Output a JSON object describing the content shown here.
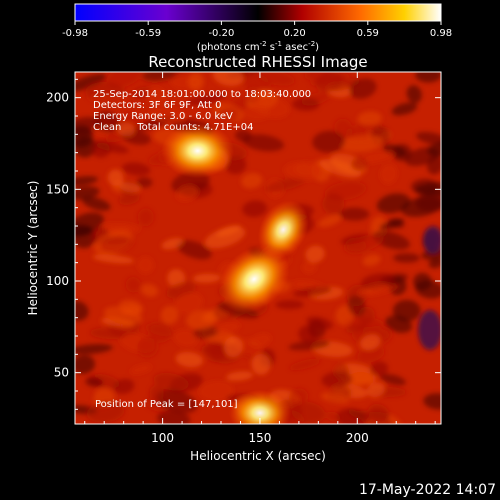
{
  "chart_data": {
    "type": "heatmap",
    "title": "Reconstructed RHESSI Image",
    "xlabel": "Heliocentric X (arcsec)",
    "ylabel": "Heliocentric Y (arcsec)",
    "xlim": [
      55,
      243
    ],
    "ylim": [
      22,
      214
    ],
    "x_ticks": [
      100,
      150,
      200
    ],
    "y_ticks": [
      50,
      100,
      150,
      200
    ],
    "colorbar": {
      "ticks": [
        "-0.98",
        "-0.59",
        "-0.20",
        "0.20",
        "0.59",
        "0.98"
      ],
      "label_text": "(photons cm",
      "label_sup1": "-2",
      "label_mid1": " s",
      "label_sup2": "-1",
      "label_mid2": " asec",
      "label_sup3": "-2",
      "label_end": ")",
      "range": [
        -0.98,
        0.98
      ]
    },
    "annotations": [
      "25-Sep-2014 18:01:00.000 to 18:03:40.000",
      "Detectors: 3F 6F 9F, Att 0",
      "Energy Range: 3.0 - 6.0 keV",
      "Clean     Total counts: 4.71E+04"
    ],
    "peak_text": "Position of Peak = [147,101]",
    "peak": [
      147,
      101
    ],
    "sources": [
      {
        "x": 147,
        "y": 101,
        "intensity": 0.98
      },
      {
        "x": 118,
        "y": 171,
        "intensity": 0.85
      },
      {
        "x": 162,
        "y": 128,
        "intensity": 0.6
      },
      {
        "x": 150,
        "y": 28,
        "intensity": 0.6
      }
    ]
  },
  "footer_date": "17-May-2022 14:07"
}
